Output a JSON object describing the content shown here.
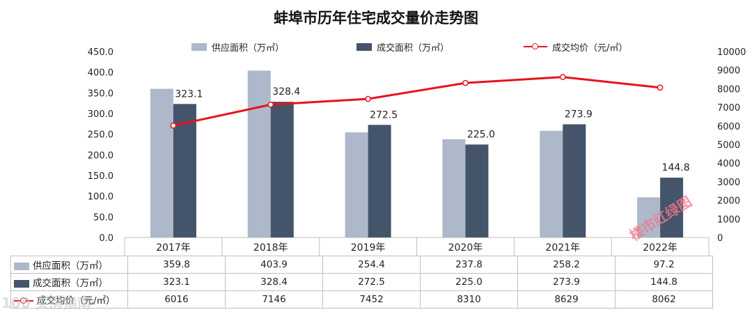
{
  "chart_data": {
    "type": "bar+line",
    "title": "蚌埠市历年住宅成交量价走势图",
    "categories": [
      "2017年",
      "2018年",
      "2019年",
      "2020年",
      "2021年",
      "2022年"
    ],
    "series": [
      {
        "name": "供应面积（万㎡）",
        "kind": "bar",
        "axis": "left",
        "color": "#adb9ca",
        "values": [
          359.8,
          403.9,
          254.4,
          237.8,
          258.2,
          97.2
        ]
      },
      {
        "name": "成交面积（万㎡）",
        "kind": "bar",
        "axis": "left",
        "color": "#44546a",
        "values": [
          323.1,
          328.4,
          272.5,
          225.0,
          273.9,
          144.8
        ]
      },
      {
        "name": "成交均价（元/㎡）",
        "kind": "line",
        "axis": "right",
        "color": "#e8121b",
        "values": [
          6016,
          7146,
          7452,
          8310,
          8629,
          8062
        ]
      }
    ],
    "data_labels": [
      "323.1",
      "328.4",
      "272.5",
      "225.0",
      "273.9",
      "144.8"
    ],
    "left_axis": {
      "ylim": [
        0,
        450
      ],
      "ticks": [
        "450.0",
        "400.0",
        "350.0",
        "300.0",
        "250.0",
        "200.0",
        "150.0",
        "100.0",
        "50.0",
        "0.0"
      ]
    },
    "right_axis": {
      "ylim": [
        0,
        10000
      ],
      "ticks": [
        "10000",
        "9000",
        "8000",
        "7000",
        "6000",
        "5000",
        "4000",
        "3000",
        "2000",
        "1000",
        "0"
      ]
    },
    "legend_position": "top",
    "grid": false
  },
  "table": {
    "rows": [
      {
        "label": "供应面积（万㎡）",
        "values": [
          "359.8",
          "403.9",
          "254.4",
          "237.8",
          "258.2",
          "97.2"
        ]
      },
      {
        "label": "成交面积（万㎡）",
        "values": [
          "323.1",
          "328.4",
          "272.5",
          "225.0",
          "273.9",
          "144.8"
        ]
      },
      {
        "label": "成交均价（元/㎡）",
        "values": [
          "6016",
          "7146",
          "7452",
          "8310",
          "8629",
          "8062"
        ]
      }
    ]
  },
  "watermark": "楼市红绿图",
  "corner_logo": "100 买房指南"
}
